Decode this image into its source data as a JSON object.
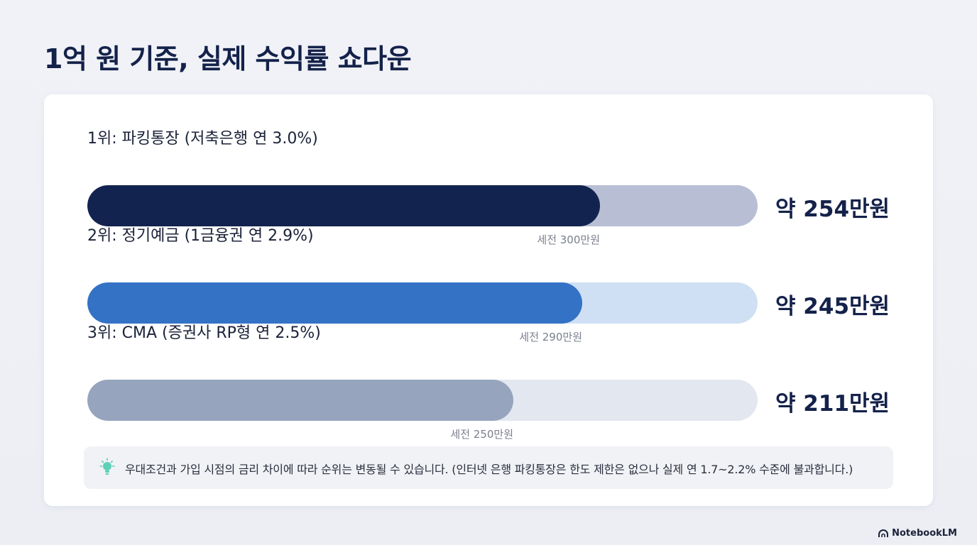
{
  "title": "1억 원 기준, 실제 수익률 쇼다운",
  "chart_data": {
    "type": "bar",
    "orientation": "horizontal",
    "title": "1억 원 기준, 실제 수익률 쇼다운",
    "xlim": [
      0,
      332
    ],
    "categories": [
      "1위: 파킹통장 (저축은행 연 3.0%)",
      "2위: 정기예금 (1금융권 연 2.9%)",
      "3위: CMA (증권사 RP형 연 2.5%)"
    ],
    "series": [
      {
        "values": [
          254,
          245,
          211
        ]
      },
      {
        "values": [
          300,
          290,
          250
        ]
      }
    ],
    "value_labels": [
      "약 254만원",
      "약 245만원",
      "약 211만원"
    ],
    "pretax_labels": [
      "세전 300만원",
      "세전 290만원",
      "세전 250만원"
    ]
  },
  "colors": {
    "fill": [
      "#13234f",
      "#3472c6",
      "#96a4be"
    ],
    "track": [
      "#b8bfd4",
      "#cfe0f4",
      "#e3e7ef"
    ]
  },
  "note": {
    "icon": "lightbulb-icon",
    "text": "우대조건과 가입 시점의 금리 차이에 따라 순위는 변동될 수 있습니다. (인터넷 은행 파킹통장은 한도 제한은 없으나 실제 연 1.7~2.2% 수준에 불과합니다.)"
  },
  "brand": "NotebookLM"
}
